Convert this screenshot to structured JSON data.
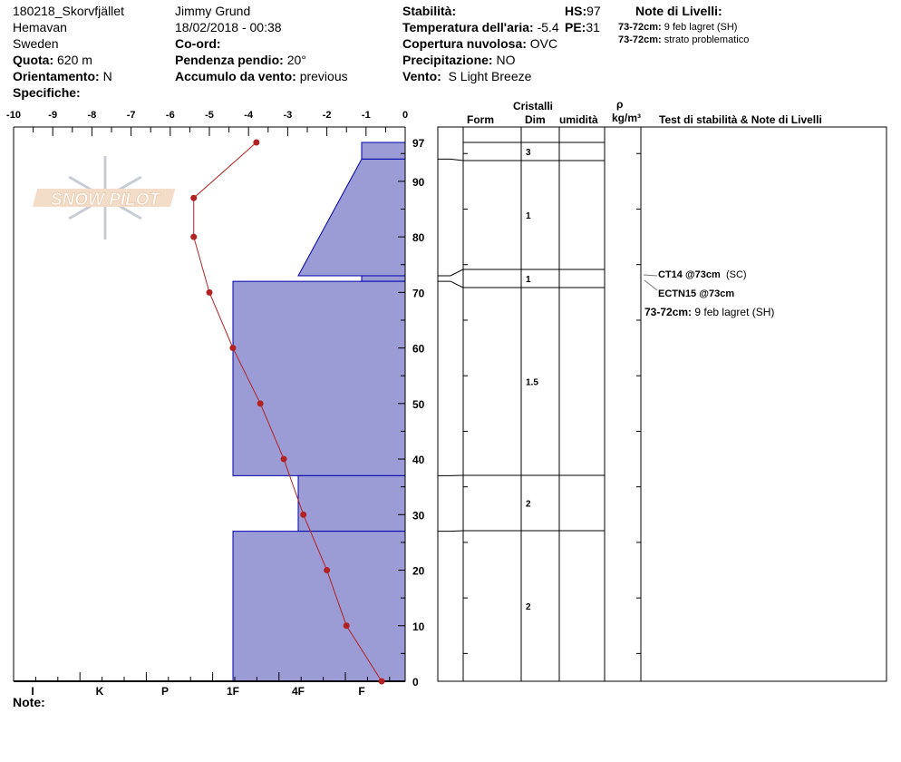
{
  "header": {
    "site": "180218_Skorvfjället",
    "location": "Hemavan",
    "country": "Sweden",
    "elevation_label": "Quota:",
    "elevation": "620 m",
    "aspect_label": "Orientamento:",
    "aspect": "N",
    "specifics_label": "Specifiche:",
    "observer": "Jimmy Grund",
    "datetime": "18/02/2018 - 00:38",
    "coord_label": "Co-ord:",
    "slope_label": "Pendenza pendio:",
    "slope": "20°",
    "wind_loading_label": "Accumulo da vento:",
    "wind_loading": "previous",
    "stability_label": "Stabilità:",
    "air_temp_label": "Temperatura dell'aria:",
    "air_temp": "-5.4",
    "cloud_label": "Copertura nuvolosa:",
    "cloud": "OVC",
    "precip_label": "Precipitazione:",
    "precip": "NO",
    "wind_label": "Vento:",
    "wind": "S Light Breeze",
    "hs_label": "HS:",
    "hs": "97",
    "pe_label": "PE:",
    "pe": "31",
    "layer_notes_title": "Note di Livelli:",
    "layer_notes": [
      {
        "range": "73-72cm:",
        "text": "9 feb lagret (SH)"
      },
      {
        "range": "73-72cm:",
        "text": "strato problematico"
      }
    ],
    "notes_label": "Note:"
  },
  "logo": {
    "text": "SNOW PILOT"
  },
  "table": {
    "crystals": "Cristalli",
    "form": "Form",
    "dim": "Dim",
    "moisture": "umidità",
    "rho": "ρ",
    "density_unit": "kg/m³",
    "stability_title": "Test di stabilità & Note di Livelli"
  },
  "stability_tests": [
    {
      "bold": "CT14 @73cm",
      "text": "(SC)"
    },
    {
      "bold": "ECTN15 @73cm",
      "text": ""
    }
  ],
  "side_note": {
    "range": "73-72cm:",
    "text": "9 feb lagret (SH)"
  },
  "colors": {
    "hardness_fill": "#9b9bd5",
    "hardness_stroke": "#0000aa",
    "temp_line": "#b22222"
  },
  "chart_data": {
    "type": "line",
    "temperature_axis": {
      "ticks": [
        "-10",
        "-9",
        "-8",
        "-7",
        "-6",
        "-5",
        "-4",
        "-3",
        "-2",
        "-1",
        "0"
      ],
      "range": [
        -10,
        0
      ]
    },
    "hardness_axis": {
      "ticks": [
        "I",
        "K",
        "P",
        "1F",
        "4F",
        "F"
      ]
    },
    "height_axis": {
      "ticks": [
        "0",
        "10",
        "20",
        "30",
        "40",
        "50",
        "60",
        "70",
        "80",
        "90",
        "97"
      ],
      "range": [
        0,
        97
      ]
    },
    "temperature_profile": [
      [
        97,
        -3.8
      ],
      [
        87,
        -5.4
      ],
      [
        80,
        -5.4
      ],
      [
        70,
        -5.0
      ],
      [
        60,
        -4.4
      ],
      [
        50,
        -3.7
      ],
      [
        40,
        -3.1
      ],
      [
        30,
        -2.6
      ],
      [
        20,
        -2.0
      ],
      [
        10,
        -1.5
      ],
      [
        0,
        -0.6
      ]
    ],
    "layers": [
      {
        "top": 97,
        "bottom": 94,
        "hardness_top": "F",
        "hardness_bottom": "F",
        "grain_size": "3"
      },
      {
        "top": 94,
        "bottom": 73,
        "hardness_top": "F",
        "hardness_bottom": "4F",
        "grain_size": "1"
      },
      {
        "top": 73,
        "bottom": 72,
        "hardness_top": "F",
        "hardness_bottom": "F",
        "grain_size": "1"
      },
      {
        "top": 72,
        "bottom": 37,
        "hardness_top": "1F",
        "hardness_bottom": "1F",
        "grain_size": "1.5"
      },
      {
        "top": 37,
        "bottom": 27,
        "hardness_top": "4F",
        "hardness_bottom": "4F",
        "grain_size": "2"
      },
      {
        "top": 27,
        "bottom": 0,
        "hardness_top": "1F",
        "hardness_bottom": "1F",
        "grain_size": "2"
      }
    ]
  }
}
